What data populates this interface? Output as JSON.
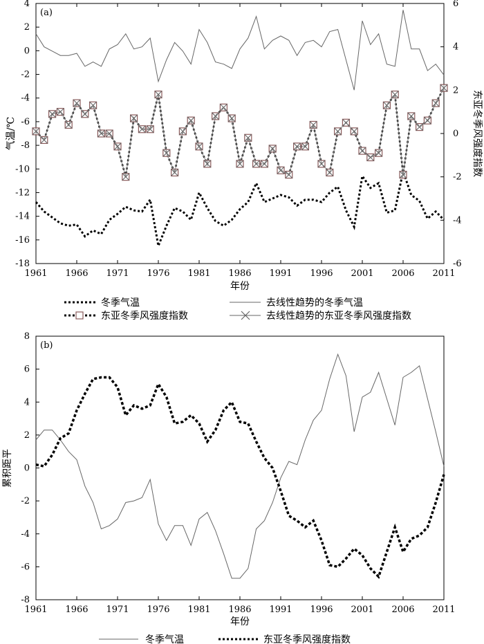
{
  "chart_data": [
    {
      "panel": "(a)",
      "type": "line",
      "xlabel": "年份",
      "ylabel_left": "气温/℃",
      "ylabel_right": "东亚冬季风强度指数",
      "xlim": [
        1961,
        2011
      ],
      "ylim_left": [
        -18,
        4
      ],
      "ylim_right": [
        -6,
        6
      ],
      "xticks": [
        1961,
        1966,
        1971,
        1976,
        1981,
        1986,
        1991,
        1996,
        2001,
        2006,
        2011
      ],
      "yticks_left": [
        4,
        2,
        0,
        -2,
        -4,
        -6,
        -8,
        -10,
        -12,
        -14,
        -16,
        -18
      ],
      "yticks_right": [
        6,
        4,
        2,
        0,
        -2,
        -4,
        -6
      ],
      "x": [
        1961,
        1962,
        1963,
        1964,
        1965,
        1966,
        1967,
        1968,
        1969,
        1970,
        1971,
        1972,
        1973,
        1974,
        1975,
        1976,
        1977,
        1978,
        1979,
        1980,
        1981,
        1982,
        1983,
        1984,
        1985,
        1986,
        1987,
        1988,
        1989,
        1990,
        1991,
        1992,
        1993,
        1994,
        1995,
        1996,
        1997,
        1998,
        1999,
        2000,
        2001,
        2002,
        2003,
        2004,
        2005,
        2006,
        2007,
        2008,
        2009,
        2010,
        2011
      ],
      "series": [
        {
          "name": "冬季气温",
          "axis": "left",
          "style": "dotted-thick",
          "values": [
            -12.8,
            -13.6,
            -14.1,
            -14.6,
            -14.8,
            -14.7,
            -15.7,
            -15.2,
            -15.5,
            -14.3,
            -13.8,
            -13.2,
            -13.5,
            -13.6,
            -12.6,
            -16.5,
            -14.8,
            -13.3,
            -13.6,
            -14.3,
            -12.0,
            -13.3,
            -14.4,
            -14.8,
            -14.3,
            -13.4,
            -12.8,
            -11.2,
            -12.8,
            -12.5,
            -12.2,
            -12.4,
            -13.1,
            -12.6,
            -12.6,
            -12.8,
            -12.0,
            -11.5,
            -13.5,
            -14.9,
            -10.6,
            -11.6,
            -11.2,
            -13.7,
            -13.5,
            -10.2,
            -12.2,
            -12.7,
            -14.2,
            -13.6,
            -14.3
          ]
        },
        {
          "name": "去线性趋势的冬季气温",
          "axis": "right",
          "style": "thin-solid",
          "values": [
            4.6,
            4.0,
            3.8,
            3.6,
            3.6,
            3.7,
            3.1,
            3.3,
            3.1,
            3.9,
            4.1,
            4.6,
            3.9,
            4.0,
            4.4,
            2.4,
            3.4,
            4.2,
            3.8,
            3.2,
            4.8,
            4.2,
            3.3,
            3.2,
            3.0,
            3.9,
            4.4,
            5.4,
            3.9,
            4.3,
            4.5,
            4.3,
            3.6,
            4.2,
            4.3,
            4.0,
            4.7,
            4.8,
            3.4,
            2.0,
            5.2,
            4.1,
            4.6,
            3.2,
            3.1,
            5.7,
            3.9,
            3.9,
            2.9,
            3.2,
            2.7
          ]
        },
        {
          "name": "东亚冬季风强度指数",
          "axis": "right",
          "style": "dashed-square",
          "values": [
            0.1,
            -0.3,
            0.9,
            1.0,
            0.4,
            1.4,
            0.9,
            1.3,
            0.0,
            0.0,
            -0.6,
            -2.0,
            0.7,
            0.2,
            0.2,
            1.8,
            -0.9,
            -1.8,
            0.1,
            0.6,
            -0.6,
            -1.4,
            0.8,
            1.2,
            0.7,
            -1.4,
            -0.2,
            -1.4,
            -1.4,
            -0.7,
            -1.7,
            -1.9,
            -0.6,
            -0.6,
            0.4,
            -1.4,
            -1.8,
            0.1,
            0.5,
            0.1,
            -0.8,
            -1.1,
            -0.9,
            1.3,
            1.8,
            -1.9,
            0.8,
            0.3,
            0.6,
            1.4,
            2.1
          ]
        },
        {
          "name": "去线性趋势的东亚冬季风强度指数",
          "axis": "right",
          "style": "gray-cross",
          "values": [
            0.1,
            -0.3,
            0.9,
            1.0,
            0.4,
            1.4,
            0.9,
            1.3,
            0.0,
            0.0,
            -0.6,
            -2.0,
            0.7,
            0.2,
            0.2,
            1.8,
            -0.9,
            -1.8,
            0.1,
            0.6,
            -0.6,
            -1.4,
            0.8,
            1.2,
            0.7,
            -1.4,
            -0.2,
            -1.4,
            -1.4,
            -0.7,
            -1.7,
            -1.9,
            -0.6,
            -0.6,
            0.4,
            -1.4,
            -1.8,
            0.1,
            0.5,
            0.1,
            -0.8,
            -1.1,
            -0.9,
            1.3,
            1.8,
            -1.9,
            0.8,
            0.3,
            0.6,
            1.4,
            2.1
          ]
        }
      ]
    },
    {
      "panel": "(b)",
      "type": "line",
      "xlabel": "年份",
      "ylabel": "累积距平",
      "xlim": [
        1961,
        2011
      ],
      "ylim": [
        -8,
        8
      ],
      "xticks": [
        1961,
        1966,
        1971,
        1976,
        1981,
        1986,
        1991,
        1996,
        2001,
        2006,
        2011
      ],
      "yticks": [
        8,
        6,
        4,
        2,
        0,
        -2,
        -4,
        -6,
        -8
      ],
      "x": [
        1961,
        1962,
        1963,
        1964,
        1965,
        1966,
        1967,
        1968,
        1969,
        1970,
        1971,
        1972,
        1973,
        1974,
        1975,
        1976,
        1977,
        1978,
        1979,
        1980,
        1981,
        1982,
        1983,
        1984,
        1985,
        1986,
        1987,
        1988,
        1989,
        1990,
        1991,
        1992,
        1993,
        1994,
        1995,
        1996,
        1997,
        1998,
        1999,
        2000,
        2001,
        2002,
        2003,
        2004,
        2005,
        2006,
        2007,
        2008,
        2009,
        2010,
        2011
      ],
      "series": [
        {
          "name": "冬季气温",
          "style": "thin-solid",
          "values": [
            1.7,
            2.3,
            2.3,
            1.7,
            1.0,
            0.5,
            -1.1,
            -2.1,
            -3.7,
            -3.5,
            -3.1,
            -2.1,
            -2.0,
            -1.8,
            -0.7,
            -3.4,
            -4.4,
            -3.5,
            -3.5,
            -4.7,
            -3.1,
            -2.7,
            -3.8,
            -5.2,
            -6.7,
            -6.7,
            -6.1,
            -3.7,
            -3.2,
            -2.1,
            -0.6,
            0.4,
            0.2,
            1.7,
            2.9,
            3.5,
            5.4,
            6.9,
            5.6,
            2.2,
            4.3,
            4.6,
            5.8,
            4.2,
            2.6,
            5.5,
            5.8,
            6.2,
            4.2,
            2.2,
            0.1
          ]
        },
        {
          "name": "东亚冬季风强度指数",
          "style": "dotted-thick",
          "values": [
            0.2,
            0.1,
            0.8,
            1.8,
            2.1,
            3.5,
            4.5,
            5.4,
            5.5,
            5.5,
            4.9,
            3.2,
            3.8,
            3.6,
            3.8,
            5.1,
            4.3,
            2.7,
            2.8,
            3.2,
            2.7,
            1.6,
            2.3,
            3.5,
            4.0,
            2.8,
            2.7,
            1.6,
            0.6,
            0.0,
            -1.4,
            -2.9,
            -3.2,
            -3.6,
            -3.2,
            -4.4,
            -5.9,
            -6.0,
            -5.5,
            -4.9,
            -5.3,
            -6.1,
            -6.6,
            -5.1,
            -3.6,
            -5.1,
            -4.3,
            -4.1,
            -3.6,
            -2.1,
            -0.4
          ]
        }
      ]
    }
  ],
  "legend_a": [
    {
      "label": "冬季气温"
    },
    {
      "label": "去线性趋势的冬季气温"
    },
    {
      "label": "东亚冬季风强度指数"
    },
    {
      "label": "去线性趋势的东亚冬季风强度指数"
    }
  ],
  "legend_b": [
    {
      "label": "冬季气温"
    },
    {
      "label": "东亚冬季风强度指数"
    }
  ],
  "colors": {
    "black": "#000000",
    "gray": "#666666",
    "square_edge": "#8a5a5a",
    "cross": "#666666"
  }
}
